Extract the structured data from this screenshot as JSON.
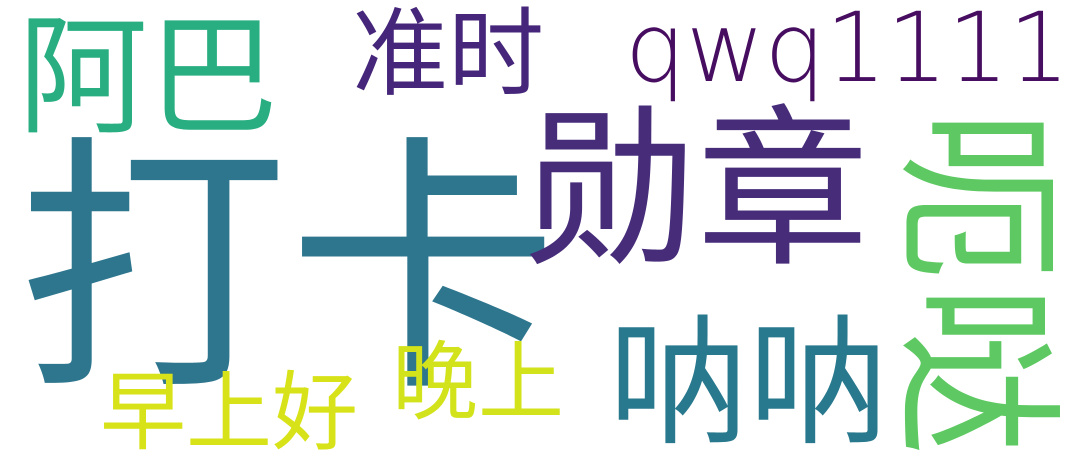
{
  "words": [
    {
      "id": "daka",
      "text": "打卡",
      "color": "#2e768e"
    },
    {
      "id": "xunzhang",
      "text": "勋章",
      "color": "#472c7a"
    },
    {
      "id": "aba",
      "text": "阿巴",
      "color": "#28ae80"
    },
    {
      "id": "zhunshi",
      "text": "准时",
      "color": "#45267a"
    },
    {
      "id": "qwq",
      "text": "qwq1111",
      "color": "#470d60"
    },
    {
      "id": "nana",
      "text": "呐呐",
      "color": "#29798e"
    },
    {
      "id": "wanshang",
      "text": "晚上",
      "color": "#d2e21b"
    },
    {
      "id": "zaoshang",
      "text": "早上好",
      "color": "#d8e219"
    },
    {
      "id": "v1",
      "text": "呃",
      "color": "#5ec962"
    },
    {
      "id": "v2",
      "text": "哒",
      "color": "#5ec962"
    }
  ]
}
